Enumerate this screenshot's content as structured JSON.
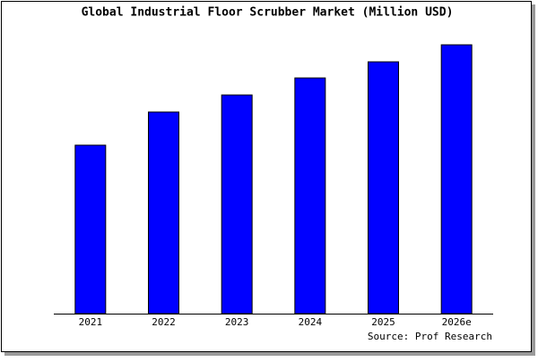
{
  "chart_data": {
    "type": "bar",
    "title": "Global Industrial Floor Scrubber Market (Million USD)",
    "categories": [
      "2021",
      "2022",
      "2023",
      "2024",
      "2025",
      "2026e"
    ],
    "values": [
      188,
      225,
      244,
      263,
      281,
      300
    ],
    "color": "#0000ff",
    "ylim": [
      0,
      300
    ],
    "source": "Source: Prof Research"
  }
}
